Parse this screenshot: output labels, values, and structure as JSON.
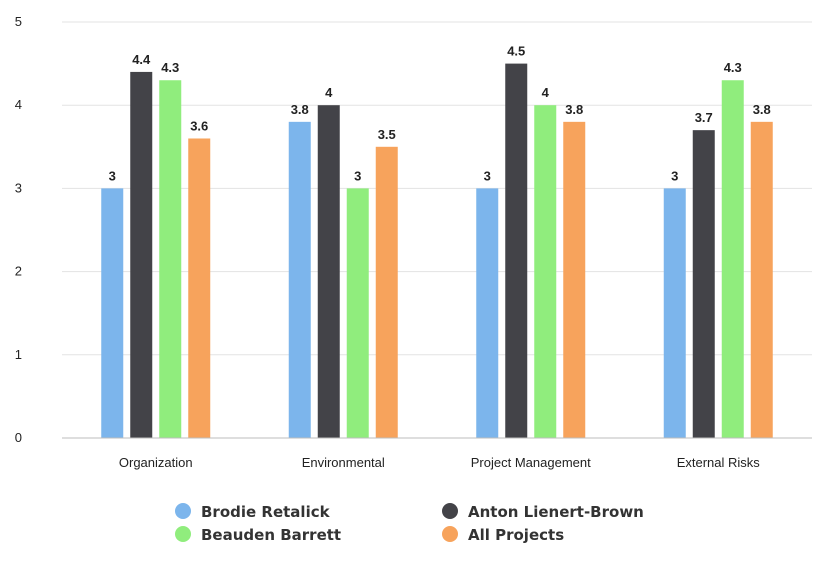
{
  "chart_data": {
    "type": "bar",
    "categories": [
      "Organization",
      "Environmental",
      "Project Management",
      "External Risks"
    ],
    "series": [
      {
        "name": "Brodie Retalick",
        "color": "#7cb5ec",
        "values": [
          3,
          3.8,
          3,
          3
        ]
      },
      {
        "name": "Anton Lienert-Brown",
        "color": "#434348",
        "values": [
          4.4,
          4,
          4.5,
          3.7
        ]
      },
      {
        "name": "Beauden Barrett",
        "color": "#90ed7d",
        "values": [
          4.3,
          3,
          4,
          4.3
        ]
      },
      {
        "name": "All Projects",
        "color": "#f7a35c",
        "values": [
          3.6,
          3.5,
          3.8,
          3.8
        ]
      }
    ],
    "ylim": [
      0,
      5
    ],
    "yticks": [
      0,
      1,
      2,
      3,
      4,
      5
    ],
    "grid": true,
    "legend": "bottom",
    "data_labels": true
  }
}
